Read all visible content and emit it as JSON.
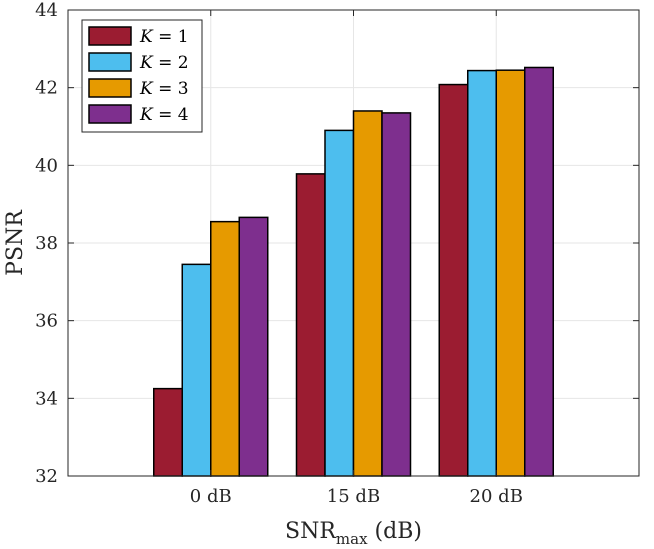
{
  "chart_data": {
    "type": "bar",
    "categories": [
      "0 dB",
      "15 dB",
      "20 dB"
    ],
    "series": [
      {
        "name": "K = 1",
        "legend_var": "K",
        "legend_val": "1",
        "color": "#9b1c31",
        "values": [
          34.25,
          39.78,
          42.08
        ]
      },
      {
        "name": "K = 2",
        "legend_var": "K",
        "legend_val": "2",
        "color": "#4dbeee",
        "values": [
          37.45,
          40.9,
          42.44
        ]
      },
      {
        "name": "K = 3",
        "legend_var": "K",
        "legend_val": "3",
        "color": "#e69a00",
        "values": [
          38.55,
          41.4,
          42.45
        ]
      },
      {
        "name": "K = 4",
        "legend_var": "K",
        "legend_val": "4",
        "color": "#7e2f8e",
        "values": [
          38.66,
          41.35,
          42.52
        ]
      }
    ],
    "ylim": [
      32,
      44
    ],
    "yticks": [
      "32",
      "34",
      "36",
      "38",
      "40",
      "42",
      "44"
    ],
    "ylabel": "PSNR",
    "xlabel_main": "SNR",
    "xlabel_sub": "max",
    "xlabel_suffix": " (dB)",
    "grid": true,
    "legend_position": "top-left"
  }
}
